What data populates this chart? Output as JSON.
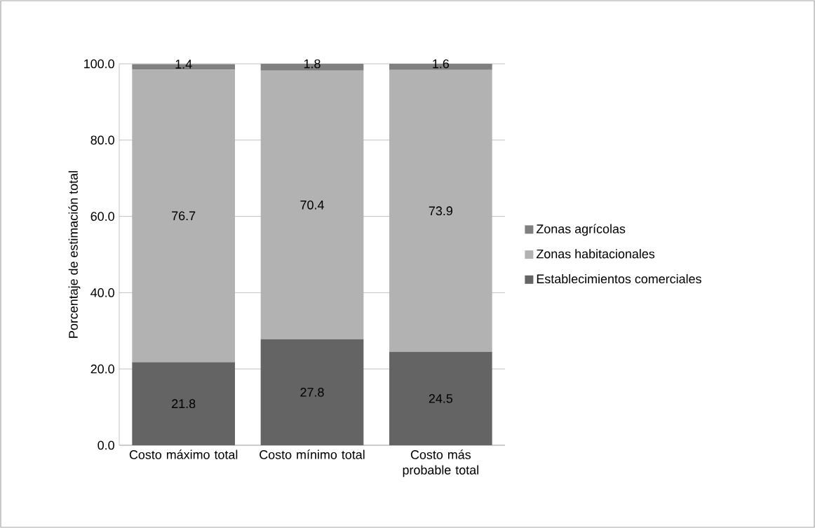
{
  "chart_data": {
    "type": "bar",
    "stacked": true,
    "ylabel": "Porcentaje de estimación total",
    "categories": [
      "Costo máximo total",
      "Costo mínimo total",
      "Costo más probable total"
    ],
    "series": [
      {
        "name": "Establecimientos comerciales",
        "color": "#646464",
        "values": [
          21.8,
          27.8,
          24.5
        ]
      },
      {
        "name": "Zonas habitacionales",
        "color": "#b2b2b2",
        "values": [
          76.7,
          70.4,
          73.9
        ]
      },
      {
        "name": "Zonas agrícolas",
        "color": "#808080",
        "values": [
          1.4,
          1.8,
          1.6
        ]
      }
    ],
    "ylim": [
      0,
      100
    ],
    "yticks": [
      {
        "value": 0,
        "label": "0.0"
      },
      {
        "value": 20,
        "label": "20.0"
      },
      {
        "value": 40,
        "label": "40.0"
      },
      {
        "value": 60,
        "label": "60.0"
      },
      {
        "value": 80,
        "label": "80.0"
      },
      {
        "value": 100,
        "label": "100.0"
      }
    ],
    "grid": "y",
    "legend": "right",
    "data_labels": true
  }
}
